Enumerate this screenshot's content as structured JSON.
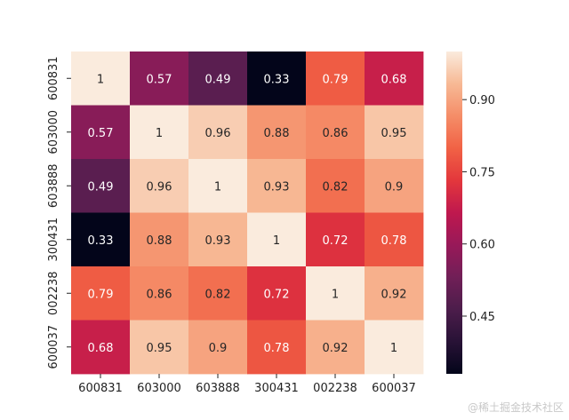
{
  "chart_data": {
    "type": "heatmap",
    "rows": [
      "600831",
      "603000",
      "603888",
      "300431",
      "002238",
      "600037"
    ],
    "columns": [
      "600831",
      "603000",
      "603888",
      "300431",
      "002238",
      "600037"
    ],
    "values": [
      [
        1,
        0.57,
        0.49,
        0.33,
        0.79,
        0.68
      ],
      [
        0.57,
        1,
        0.96,
        0.88,
        0.86,
        0.95
      ],
      [
        0.49,
        0.96,
        1,
        0.93,
        0.82,
        0.9
      ],
      [
        0.33,
        0.88,
        0.93,
        1,
        0.72,
        0.78
      ],
      [
        0.79,
        0.86,
        0.82,
        0.72,
        1,
        0.92
      ],
      [
        0.68,
        0.95,
        0.9,
        0.78,
        0.92,
        1
      ]
    ],
    "value_labels": [
      [
        "1",
        "0.57",
        "0.49",
        "0.33",
        "0.79",
        "0.68"
      ],
      [
        "0.57",
        "1",
        "0.96",
        "0.88",
        "0.86",
        "0.95"
      ],
      [
        "0.49",
        "0.96",
        "1",
        "0.93",
        "0.82",
        "0.9"
      ],
      [
        "0.33",
        "0.88",
        "0.93",
        "1",
        "0.72",
        "0.78"
      ],
      [
        "0.79",
        "0.86",
        "0.82",
        "0.72",
        "1",
        "0.92"
      ],
      [
        "0.68",
        "0.95",
        "0.9",
        "0.78",
        "0.92",
        "1"
      ]
    ],
    "colorbar": {
      "colormap": "rocket",
      "vmin": 0.33,
      "vmax": 1.0,
      "ticks": [
        0.45,
        0.6,
        0.75,
        0.9
      ],
      "tick_labels": [
        "0.45",
        "0.60",
        "0.75",
        "0.90"
      ]
    },
    "colors": {
      "low": "#03051a",
      "high": "#faebdd",
      "label_dark": "#262626",
      "label_light": "#ffffff"
    },
    "watermark": "@稀土掘金技术社区"
  }
}
